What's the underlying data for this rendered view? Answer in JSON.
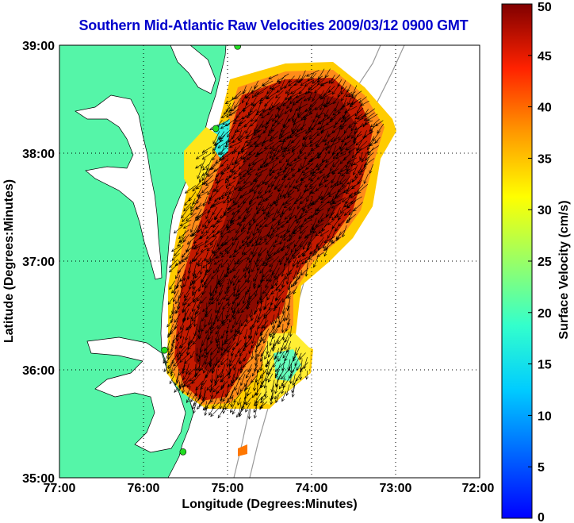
{
  "title": "Southern Mid-Atlantic Raw Velocities 2009/03/12 0900 GMT",
  "axes": {
    "xlabel": "Longitude (Degrees:Minutes)",
    "ylabel": "Latitude (Degrees:Minutes)",
    "xticks": [
      "77:00",
      "76:00",
      "75:00",
      "74:00",
      "73:00",
      "72:00"
    ],
    "yticks": [
      "39:00",
      "38:00",
      "37:00",
      "36:00",
      "35:00"
    ],
    "xrange": [
      -77,
      -72
    ],
    "yrange": [
      35,
      39
    ],
    "grid": "dotted"
  },
  "colorbar": {
    "label": "Surface Velocity (cm/s)",
    "ticks": [
      "50",
      "45",
      "40",
      "35",
      "30",
      "25",
      "20",
      "15",
      "10",
      "5",
      "0"
    ],
    "range": [
      0,
      50
    ],
    "colormap": "jet"
  },
  "colors": {
    "land": "#55f5a8",
    "water": "#ffffff",
    "title": "#0000cc",
    "arrow": "#000000",
    "site": "#22dd22"
  },
  "stations": [
    {
      "lon": -74.88,
      "lat": 38.99
    },
    {
      "lon": -75.14,
      "lat": 38.23
    },
    {
      "lon": -75.75,
      "lat": 36.18
    },
    {
      "lon": -75.53,
      "lat": 35.24
    }
  ]
}
